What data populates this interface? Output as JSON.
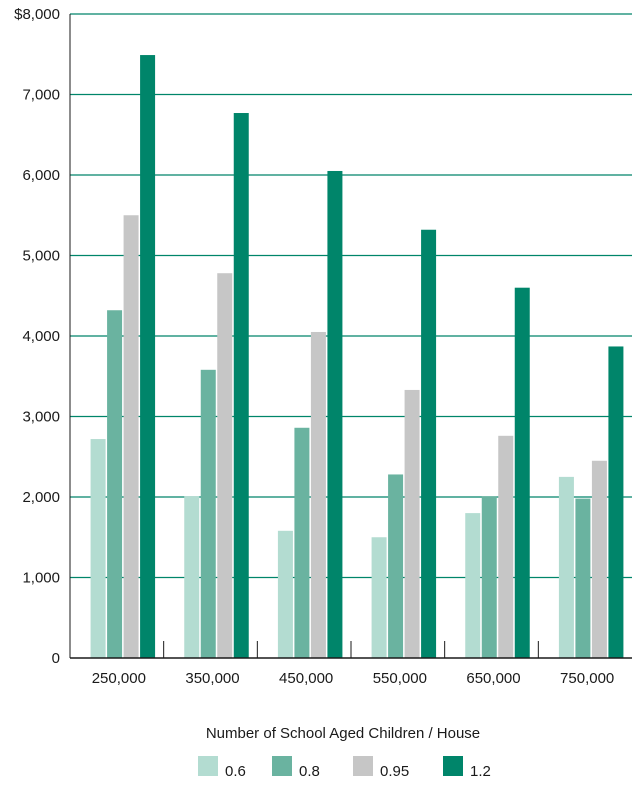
{
  "chart_data": {
    "type": "bar",
    "categories": [
      "250,000",
      "350,000",
      "450,000",
      "550,000",
      "650,000",
      "750,000"
    ],
    "series": [
      {
        "name": "0.6",
        "color": "#b3dcd1",
        "values": [
          2720,
          2010,
          1580,
          1500,
          1800,
          2250
        ]
      },
      {
        "name": "0.8",
        "color": "#6ab3a0",
        "values": [
          4320,
          3580,
          2860,
          2280,
          2010,
          1980
        ]
      },
      {
        "name": "0.95",
        "color": "#c6c6c6",
        "values": [
          5500,
          4780,
          4050,
          3330,
          2760,
          2450
        ]
      },
      {
        "name": "1.2",
        "color": "#00856a",
        "values": [
          7490,
          6770,
          6050,
          5320,
          4600,
          3870
        ]
      }
    ],
    "y_ticks": [
      "0",
      "1,000",
      "2,000",
      "3,000",
      "4,000",
      "5,000",
      "6,000",
      "7,000",
      "$8,000"
    ],
    "ylim": [
      0,
      8000
    ],
    "grid": true,
    "gridline_color": "#00856a",
    "legend_title": "Number of School Aged Children / House",
    "legend_position": "bottom"
  }
}
